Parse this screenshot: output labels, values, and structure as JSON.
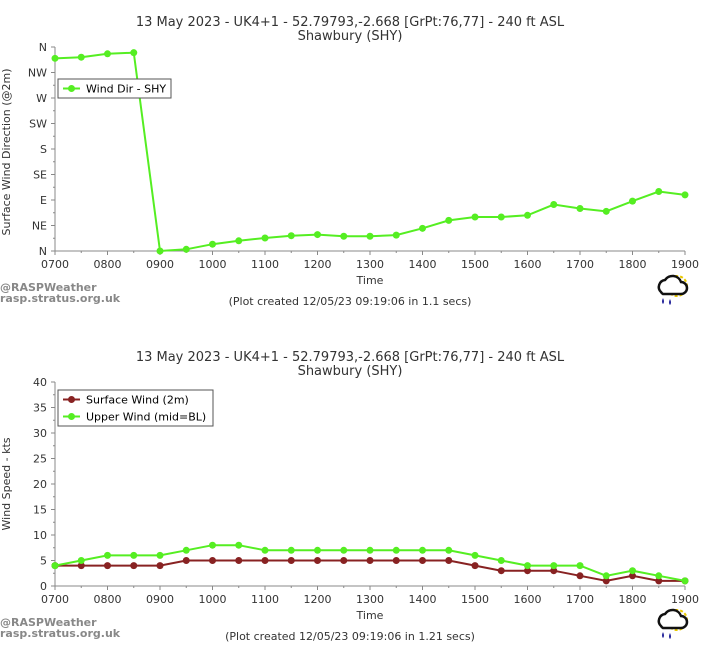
{
  "chart_data": [
    {
      "type": "line",
      "title": "13 May 2023 - UK4+1 - 52.79793,-2.668 [GrPt:76,77]  - 240 ft ASL",
      "subtitle": "Shawbury (SHY)",
      "xlabel": "Time",
      "ylabel": "Surface Wind Direction (@2m)",
      "x": [
        700,
        750,
        800,
        850,
        900,
        950,
        1000,
        1050,
        1100,
        1150,
        1200,
        1250,
        1300,
        1350,
        1400,
        1450,
        1500,
        1550,
        1600,
        1650,
        1700,
        1750,
        1800,
        1850,
        1900
      ],
      "x_ticks": [
        "0700",
        "0800",
        "0900",
        "1000",
        "1100",
        "1200",
        "1300",
        "1400",
        "1500",
        "1600",
        "1700",
        "1800",
        "1900"
      ],
      "xlim": [
        700,
        1900
      ],
      "y_ticks": [
        "N",
        "NE",
        "E",
        "SE",
        "S",
        "SW",
        "W",
        "NW",
        "N"
      ],
      "ylim": [
        0,
        360
      ],
      "grid": false,
      "legend_position": "top-left",
      "series": [
        {
          "name": "Wind Dir - SHY",
          "color": "#55ee22",
          "values": [
            340,
            342,
            348,
            350,
            0,
            3,
            12,
            18,
            23,
            27,
            29,
            26,
            26,
            28,
            40,
            54,
            60,
            60,
            63,
            82,
            75,
            70,
            88,
            105,
            99
          ]
        }
      ],
      "credit": "(Plot created 12/05/23 09:19:06 in 1.1 secs)"
    },
    {
      "type": "line",
      "title": "13 May 2023 - UK4+1 - 52.79793,-2.668 [GrPt:76,77]  - 240 ft ASL",
      "subtitle": "Shawbury (SHY)",
      "xlabel": "Time",
      "ylabel": "Wind Speed - kts",
      "x": [
        700,
        750,
        800,
        850,
        900,
        950,
        1000,
        1050,
        1100,
        1150,
        1200,
        1250,
        1300,
        1350,
        1400,
        1450,
        1500,
        1550,
        1600,
        1650,
        1700,
        1750,
        1800,
        1850,
        1900
      ],
      "x_ticks": [
        "0700",
        "0800",
        "0900",
        "1000",
        "1100",
        "1200",
        "1300",
        "1400",
        "1500",
        "1600",
        "1700",
        "1800",
        "1900"
      ],
      "xlim": [
        700,
        1900
      ],
      "y_ticks": [
        "0",
        "5",
        "10",
        "15",
        "20",
        "25",
        "30",
        "35",
        "40"
      ],
      "ylim": [
        0,
        40
      ],
      "grid": false,
      "legend_position": "top-left",
      "series": [
        {
          "name": "Surface Wind (2m)",
          "color": "#882222",
          "values": [
            4,
            4,
            4,
            4,
            4,
            5,
            5,
            5,
            5,
            5,
            5,
            5,
            5,
            5,
            5,
            5,
            4,
            3,
            3,
            3,
            2,
            1,
            2,
            1,
            1
          ]
        },
        {
          "name": "Upper Wind (mid=BL)",
          "color": "#55ee22",
          "values": [
            4,
            5,
            6,
            6,
            6,
            7,
            8,
            8,
            7,
            7,
            7,
            7,
            7,
            7,
            7,
            7,
            6,
            5,
            4,
            4,
            4,
            2,
            3,
            2,
            1
          ]
        }
      ],
      "credit": "(Plot created 12/05/23 09:19:06 in 1.21 secs)"
    }
  ],
  "watermark": {
    "line1": "@RASPWeather",
    "line2": "rasp.stratus.org.uk"
  },
  "logo_icon": "cloud-rain-sun-icon"
}
